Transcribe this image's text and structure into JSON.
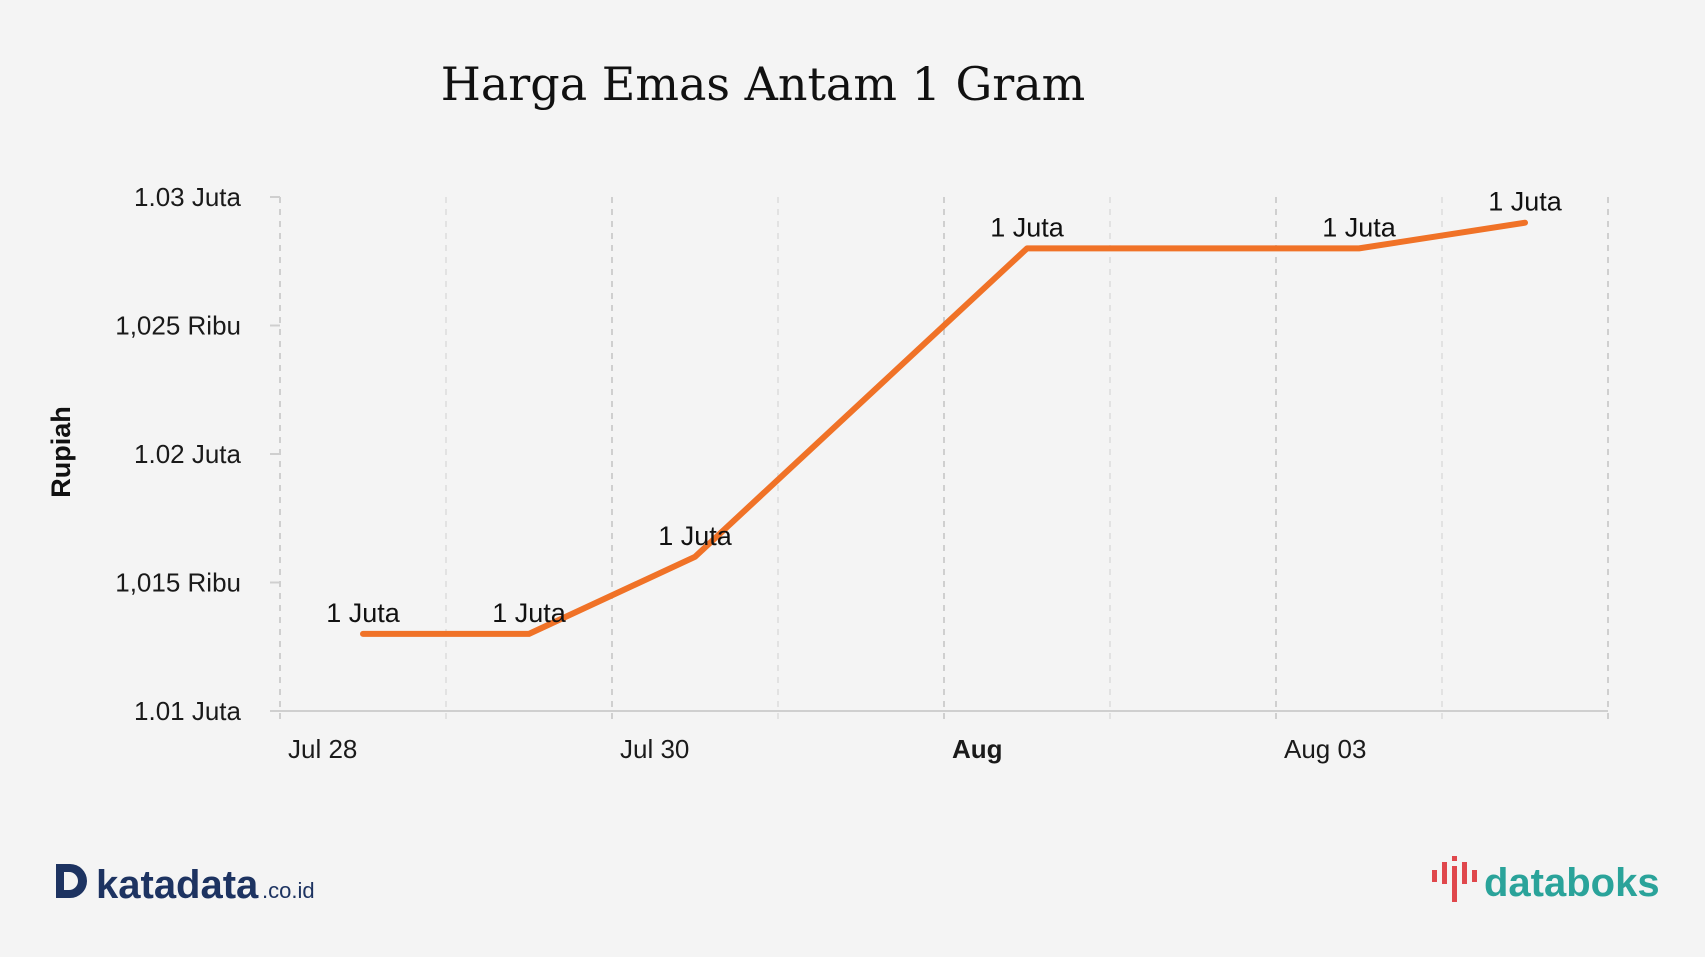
{
  "chart_data": {
    "type": "line",
    "title": "Harga Emas Antam 1 Gram",
    "ylabel": "Rupiah",
    "xlabel": "",
    "ylim": [
      1010000,
      1030000
    ],
    "yticks": [
      {
        "value": 1010000,
        "label": "1.01 Juta"
      },
      {
        "value": 1015000,
        "label": "1,015 Ribu"
      },
      {
        "value": 1020000,
        "label": "1.02 Juta"
      },
      {
        "value": 1025000,
        "label": "1,025 Ribu"
      },
      {
        "value": 1030000,
        "label": "1.03 Juta"
      }
    ],
    "xlim": [
      "2021-07-28",
      "2021-08-05"
    ],
    "xticks": [
      {
        "date": "2021-07-28",
        "label": "Jul 28",
        "bold": false
      },
      {
        "date": "2021-07-30",
        "label": "Jul 30",
        "bold": false
      },
      {
        "date": "2021-08-01",
        "label": "Aug",
        "bold": true
      },
      {
        "date": "2021-08-03",
        "label": "Aug 03",
        "bold": false
      }
    ],
    "grid_dates": [
      "2021-07-28",
      "2021-07-29",
      "2021-07-30",
      "2021-07-31",
      "2021-08-01",
      "2021-08-02",
      "2021-08-03",
      "2021-08-04",
      "2021-08-05"
    ],
    "series": [
      {
        "color": "#f07227",
        "points": [
          {
            "x": "2021-07-28T12:00",
            "y": 1013000,
            "label": "1 Juta"
          },
          {
            "x": "2021-07-29T12:00",
            "y": 1013000,
            "label": "1 Juta"
          },
          {
            "x": "2021-07-30T12:00",
            "y": 1016000,
            "label": "1 Juta"
          },
          {
            "x": "2021-08-01T12:00",
            "y": 1028000,
            "label": "1 Juta"
          },
          {
            "x": "2021-08-03T12:00",
            "y": 1028000,
            "label": "1 Juta"
          },
          {
            "x": "2021-08-04T12:00",
            "y": 1029000,
            "label": "1 Juta"
          }
        ]
      }
    ],
    "grid": true,
    "legend": "none"
  },
  "branding": {
    "left_logo": {
      "name": "katadata",
      "suffix": ".co.id",
      "color": "#1d3361"
    },
    "right_logo": {
      "name": "databoks",
      "color": "#2aa39a",
      "accent": "#e0474c"
    }
  }
}
